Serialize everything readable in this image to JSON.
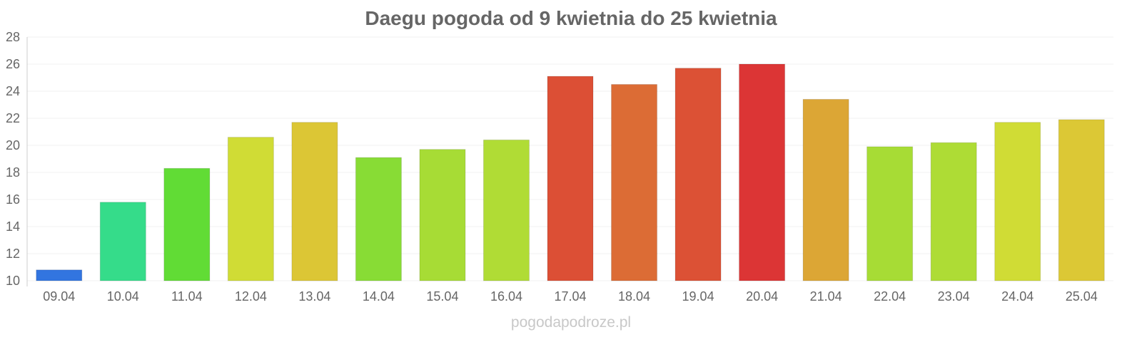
{
  "chart_data": {
    "type": "bar",
    "title": "Daegu pogoda od 9 kwietnia do 25 kwietnia",
    "xlabel": "",
    "ylabel": "",
    "ylim": [
      10,
      28
    ],
    "yticks": [
      10,
      12,
      14,
      16,
      18,
      20,
      22,
      24,
      26,
      28
    ],
    "grid": true,
    "categories": [
      "09.04",
      "10.04",
      "11.04",
      "12.04",
      "13.04",
      "14.04",
      "15.04",
      "16.04",
      "17.04",
      "18.04",
      "19.04",
      "20.04",
      "21.04",
      "22.04",
      "23.04",
      "24.04",
      "25.04"
    ],
    "values": [
      10.8,
      15.8,
      18.3,
      20.6,
      21.7,
      19.1,
      19.7,
      20.4,
      25.1,
      24.5,
      25.7,
      26.0,
      23.4,
      19.9,
      20.2,
      21.7,
      21.9
    ],
    "colors": [
      "#3275e0",
      "#35dc8a",
      "#61dc35",
      "#d0dc35",
      "#dcc635",
      "#88dc35",
      "#a7dc35",
      "#b0dc35",
      "#dc4f35",
      "#dc6c35",
      "#dc5135",
      "#dc3535",
      "#dca635",
      "#a7dc35",
      "#aedc35",
      "#d0dc35",
      "#dcc835"
    ]
  },
  "watermark": "pogodapodroze.pl"
}
